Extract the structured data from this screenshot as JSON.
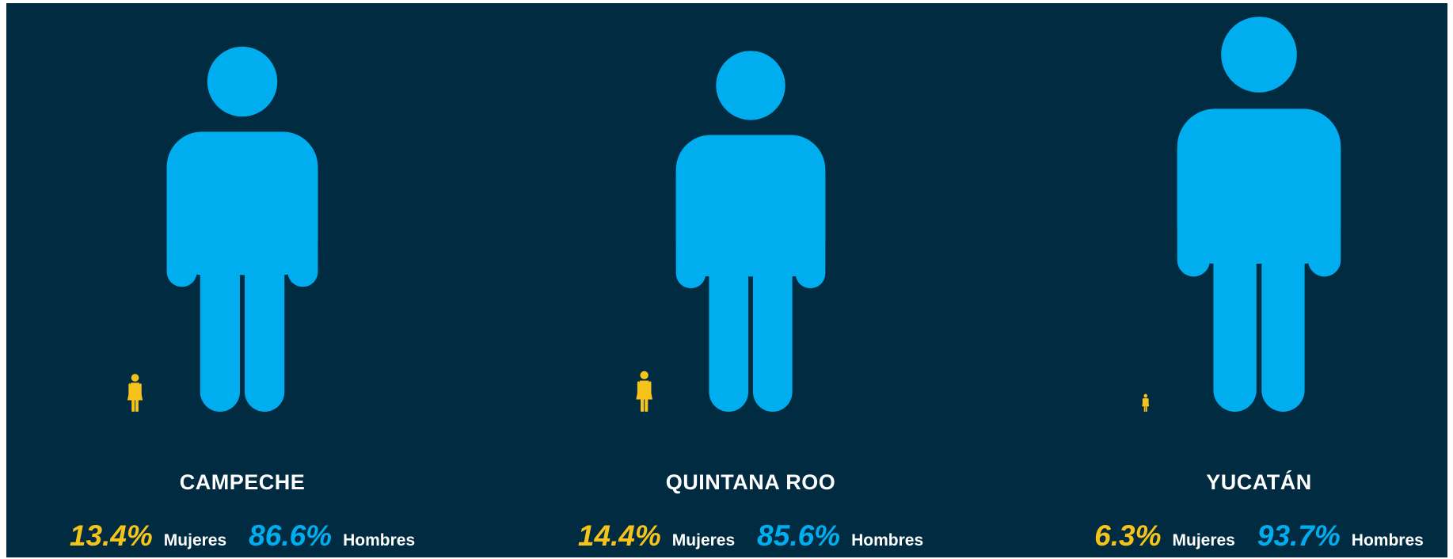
{
  "colors": {
    "background": "#002b40",
    "men": "#00aeef",
    "women": "#f6c31b",
    "label": "#ffffff"
  },
  "icons": {
    "men": "man-icon",
    "women": "woman-icon"
  },
  "chart_data": {
    "type": "pictograph",
    "categories": [
      "CAMPECHE",
      "QUINTANA ROO",
      "YUCATÁN"
    ],
    "series": [
      {
        "name": "Mujeres",
        "values": [
          13.4,
          14.4,
          6.3
        ],
        "labels": [
          "13.4%",
          "14.4%",
          "6.3%"
        ]
      },
      {
        "name": "Hombres",
        "values": [
          86.6,
          85.6,
          93.7
        ],
        "labels": [
          "86.6%",
          "85.6%",
          "93.7%"
        ]
      }
    ],
    "unit": "%"
  },
  "states": [
    {
      "name": "CAMPECHE",
      "women_pct": "13.4%",
      "women_label": "Mujeres",
      "men_pct": "86.6%",
      "men_label": "Hombres"
    },
    {
      "name": "QUINTANA ROO",
      "women_pct": "14.4%",
      "women_label": "Mujeres",
      "men_pct": "85.6%",
      "men_label": "Hombres"
    },
    {
      "name": "YUCATÁN",
      "women_pct": "6.3%",
      "women_label": "Mujeres",
      "men_pct": "93.7%",
      "men_label": "Hombres"
    }
  ]
}
